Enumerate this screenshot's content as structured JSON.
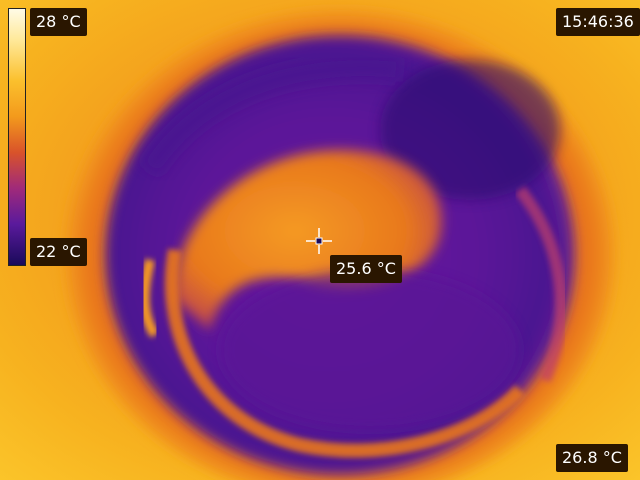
{
  "overlay": {
    "scale_max": "28 °C",
    "scale_min": "22 °C",
    "time": "15:46:36",
    "center_temp": "25.6 °C",
    "corner_temp": "26.8 °C"
  },
  "palette": {
    "hot": "#fff6c8",
    "warm": "#fbc02d",
    "orange": "#f39a1c",
    "magenta": "#b0307a",
    "purple": "#5a1a9c",
    "cold": "#1a0a5a"
  },
  "icons": {
    "center_marker": "crosshair-icon"
  }
}
